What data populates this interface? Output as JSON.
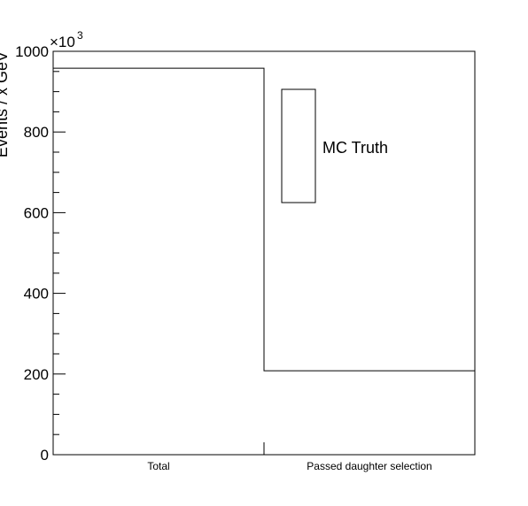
{
  "chart_data": {
    "type": "bar",
    "style": "step-histogram",
    "categories": [
      "Total",
      "Passed daughter selection"
    ],
    "series": [
      {
        "name": "MC Truth",
        "values": [
          958000,
          208000
        ]
      }
    ],
    "ylabel": "Events / x GeV",
    "yscale_factor": "×10",
    "yscale_exponent": "3",
    "ylim": [
      0,
      1000000
    ],
    "yticks": [
      0,
      200,
      400,
      600,
      800,
      1000
    ],
    "grid": false,
    "legend_position": "top-right",
    "line_color": "#000000"
  }
}
